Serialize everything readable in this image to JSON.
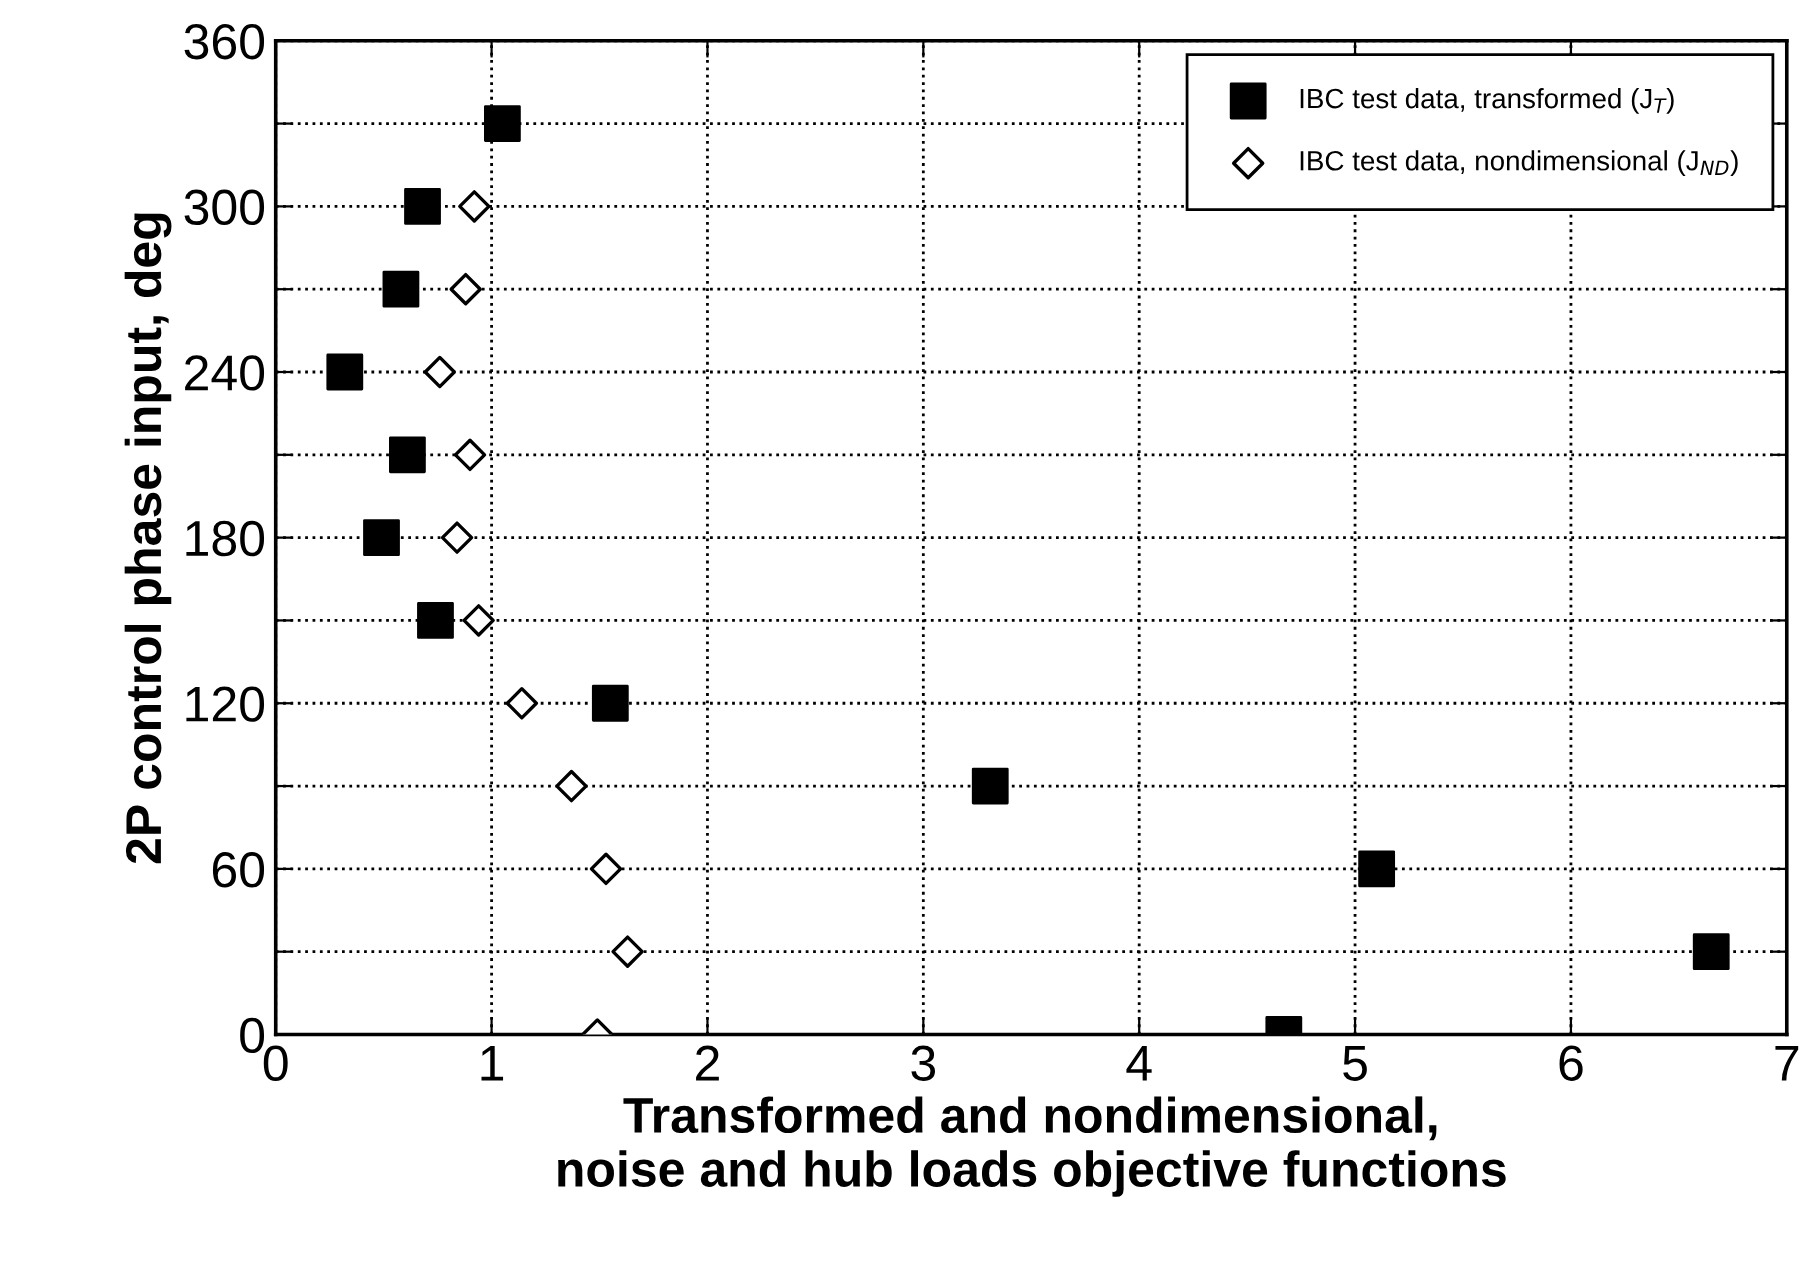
{
  "chart_data": {
    "type": "scatter",
    "xlabel": "Transformed and nondimensional,\nnoise and hub loads objective functions",
    "ylabel": "2P control phase input, deg",
    "series": [
      {
        "name": "IBC test data, transformed (J$_{T}$)",
        "color": "#000000",
        "marker": "square",
        "x": [
          1.05,
          0.68,
          0.58,
          0.32,
          0.61,
          0.49,
          0.74,
          1.55,
          3.31,
          5.1,
          6.65,
          4.67
        ],
        "values": [
          330,
          300,
          270,
          240,
          210,
          180,
          150,
          120,
          90,
          60,
          30,
          0
        ]
      },
      {
        "name": "IBC test data, nondimensional (J$_{ND}$)",
        "color": "#000000",
        "marker": "diamond",
        "x": [
          0.92,
          0.88,
          0.76,
          0.9,
          0.84,
          0.94,
          1.14,
          1.37,
          1.53,
          1.63,
          1.49
        ],
        "values": [
          300,
          270,
          240,
          210,
          180,
          150,
          120,
          90,
          60,
          30,
          0
        ]
      }
    ],
    "xlim": [
      0,
      7
    ],
    "xticks": [
      0,
      1,
      2,
      3,
      4,
      5,
      6,
      7
    ],
    "ylim": [
      0,
      360
    ],
    "yticks": [
      0,
      {
        "value": 30,
        "label": null
      },
      60,
      {
        "value": 90,
        "label": null
      },
      120,
      {
        "value": 150,
        "label": null
      },
      180,
      {
        "value": 210,
        "label": null
      },
      240,
      {
        "value": 270,
        "label": null
      },
      300,
      {
        "value": 330,
        "label": null
      },
      360
    ],
    "grid": true,
    "legend": "top right"
  }
}
